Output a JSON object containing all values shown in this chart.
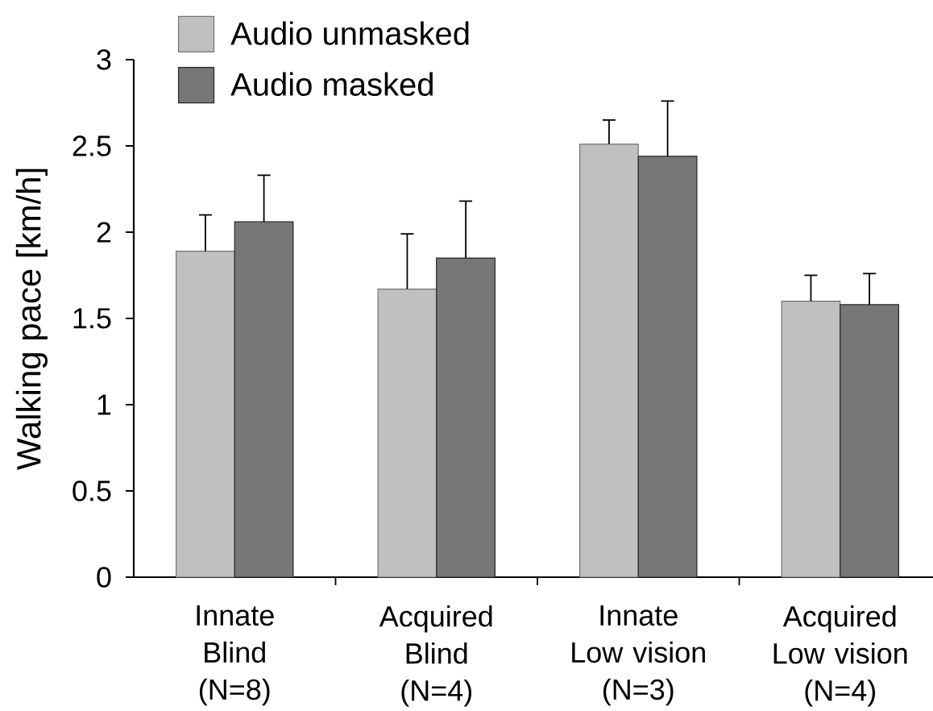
{
  "chart_data": {
    "type": "bar",
    "ylabel": "Walking pace [km/h]",
    "categories": [
      "Innate Blind (N=8)",
      "Acquired Blind (N=4)",
      "Innate Low vision (N=3)",
      "Acquired Low vision (N=4)"
    ],
    "series": [
      {
        "name": "Audio unmasked",
        "color": "#c0c0c0",
        "values": [
          1.89,
          1.67,
          2.51,
          1.6
        ],
        "errors": [
          [
            1.89,
            2.1
          ],
          [
            1.67,
            1.99
          ],
          [
            2.51,
            2.65
          ],
          [
            1.6,
            1.75
          ]
        ]
      },
      {
        "name": "Audio masked",
        "color": "#777777",
        "values": [
          2.06,
          1.85,
          2.44,
          1.58
        ],
        "errors": [
          [
            2.06,
            2.33
          ],
          [
            1.85,
            2.18
          ],
          [
            2.44,
            2.76
          ],
          [
            1.58,
            1.76
          ]
        ]
      }
    ],
    "ylim": [
      0,
      3
    ],
    "yticks": [
      0,
      0.5,
      1,
      1.5,
      2,
      2.5,
      3
    ],
    "legend": "top left"
  }
}
